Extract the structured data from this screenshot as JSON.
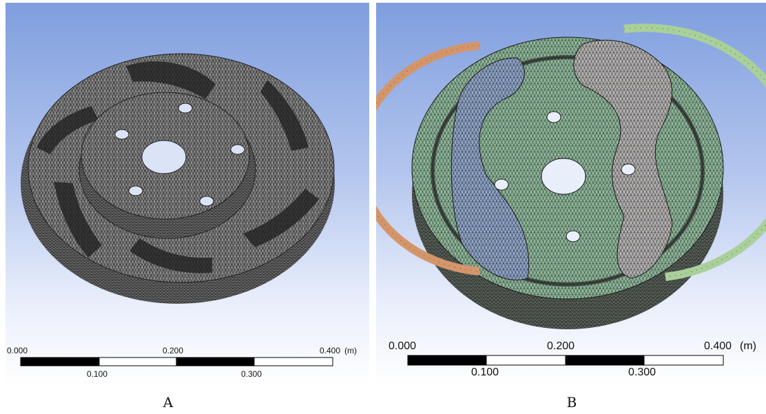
{
  "panels": [
    {
      "caption": "A",
      "unit": "(m)",
      "scale_labels_top": [
        "0.000",
        "0.200",
        "0.400"
      ],
      "scale_labels_bottom": [
        "0.100",
        "0.300"
      ]
    },
    {
      "caption": "B",
      "unit": "(m)",
      "scale_labels_top": [
        "0.000",
        "0.200",
        "0.400"
      ],
      "scale_labels_bottom": [
        "0.100",
        "0.300"
      ]
    }
  ],
  "colors": {
    "background_top": "#7f9ede",
    "background_bottom": "#ffffff",
    "mesh_dark": "#3b3b3b",
    "mesh_green": "#8fb59a",
    "mesh_blue": "#8fa4c4",
    "mesh_gray": "#b3b0b0",
    "strip_orange": "#d4956b",
    "strip_green": "#a9cf9a"
  }
}
